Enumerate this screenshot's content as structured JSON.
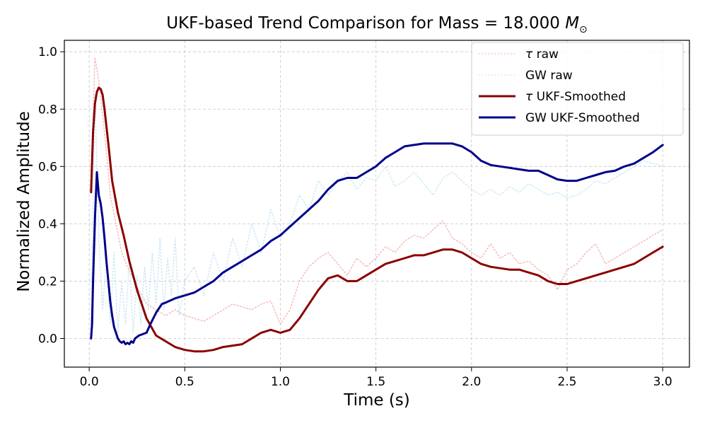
{
  "chart_data": {
    "type": "line",
    "title": "UKF-based Trend Comparison for Mass = 18.000",
    "title_symbol": "M",
    "title_subscript": "⊙",
    "xlabel": "Time (s)",
    "ylabel": "Normalized Amplitude",
    "xlim": [
      -0.13,
      3.14
    ],
    "ylim": [
      -0.1,
      1.04
    ],
    "xticks": [
      0.0,
      0.5,
      1.0,
      1.5,
      2.0,
      2.5,
      3.0
    ],
    "xtick_labels": [
      "0.0",
      "0.5",
      "1.0",
      "1.5",
      "2.0",
      "2.5",
      "3.0"
    ],
    "yticks": [
      0.0,
      0.2,
      0.4,
      0.6,
      0.8,
      1.0
    ],
    "ytick_labels": [
      "0.0",
      "0.2",
      "0.4",
      "0.6",
      "0.8",
      "1.0"
    ],
    "grid": true,
    "legend_position": "top-right",
    "series": [
      {
        "name": "τ raw",
        "label_symbol": "τ",
        "label_rest": " raw",
        "color": "#f4a6a6",
        "style": "dotted",
        "x": [
          0.01,
          0.03,
          0.05,
          0.07,
          0.09,
          0.11,
          0.14,
          0.17,
          0.2,
          0.25,
          0.3,
          0.35,
          0.4,
          0.45,
          0.5,
          0.55,
          0.6,
          0.65,
          0.7,
          0.75,
          0.8,
          0.85,
          0.9,
          0.95,
          1.0,
          1.05,
          1.1,
          1.15,
          1.2,
          1.25,
          1.3,
          1.35,
          1.4,
          1.45,
          1.5,
          1.55,
          1.6,
          1.65,
          1.7,
          1.75,
          1.8,
          1.85,
          1.9,
          1.95,
          2.0,
          2.05,
          2.1,
          2.15,
          2.2,
          2.25,
          2.3,
          2.35,
          2.4,
          2.45,
          2.5,
          2.55,
          2.6,
          2.65,
          2.7,
          2.75,
          2.8,
          2.85,
          2.9,
          2.95,
          3.0
        ],
        "values": [
          0.55,
          0.98,
          0.9,
          0.78,
          0.65,
          0.5,
          0.4,
          0.3,
          0.25,
          0.18,
          0.12,
          0.1,
          0.08,
          0.1,
          0.08,
          0.07,
          0.06,
          0.08,
          0.1,
          0.12,
          0.11,
          0.1,
          0.12,
          0.13,
          0.05,
          0.1,
          0.2,
          0.25,
          0.28,
          0.3,
          0.26,
          0.22,
          0.28,
          0.25,
          0.28,
          0.32,
          0.3,
          0.34,
          0.36,
          0.35,
          0.38,
          0.41,
          0.35,
          0.33,
          0.3,
          0.28,
          0.33,
          0.28,
          0.3,
          0.26,
          0.27,
          0.24,
          0.22,
          0.17,
          0.24,
          0.26,
          0.3,
          0.33,
          0.26,
          0.28,
          0.3,
          0.32,
          0.34,
          0.36,
          0.38
        ]
      },
      {
        "name": "GW raw",
        "label_symbol": "",
        "label_rest": "GW raw",
        "color": "#bfe3f2",
        "style": "dotted",
        "x": [
          0.01,
          0.03,
          0.05,
          0.07,
          0.09,
          0.11,
          0.13,
          0.15,
          0.17,
          0.19,
          0.21,
          0.23,
          0.25,
          0.27,
          0.29,
          0.31,
          0.33,
          0.35,
          0.37,
          0.39,
          0.41,
          0.43,
          0.45,
          0.47,
          0.5,
          0.55,
          0.6,
          0.65,
          0.7,
          0.75,
          0.8,
          0.85,
          0.9,
          0.95,
          1.0,
          1.05,
          1.1,
          1.15,
          1.2,
          1.25,
          1.3,
          1.35,
          1.4,
          1.45,
          1.5,
          1.55,
          1.6,
          1.65,
          1.7,
          1.75,
          1.8,
          1.85,
          1.9,
          1.95,
          2.0,
          2.05,
          2.1,
          2.15,
          2.2,
          2.25,
          2.3,
          2.35,
          2.4,
          2.45,
          2.5,
          2.55,
          2.6,
          2.65,
          2.7,
          2.75,
          2.8,
          2.85,
          2.9,
          2.95,
          3.0
        ],
        "values": [
          0.05,
          0.85,
          0.35,
          0.1,
          0.28,
          0.05,
          0.3,
          0.02,
          0.2,
          0.05,
          0.28,
          0.02,
          0.22,
          0.05,
          0.25,
          0.1,
          0.3,
          0.12,
          0.35,
          0.1,
          0.28,
          0.15,
          0.35,
          0.08,
          0.2,
          0.25,
          0.15,
          0.3,
          0.2,
          0.35,
          0.25,
          0.4,
          0.3,
          0.45,
          0.35,
          0.4,
          0.5,
          0.45,
          0.55,
          0.5,
          0.55,
          0.58,
          0.52,
          0.56,
          0.55,
          0.6,
          0.53,
          0.55,
          0.58,
          0.54,
          0.5,
          0.56,
          0.58,
          0.55,
          0.52,
          0.5,
          0.52,
          0.5,
          0.53,
          0.51,
          0.54,
          0.52,
          0.5,
          0.51,
          0.49,
          0.5,
          0.52,
          0.55,
          0.54,
          0.56,
          0.58,
          0.6,
          0.62,
          0.61,
          0.6
        ]
      },
      {
        "name": "τ UKF-Smoothed",
        "label_symbol": "τ",
        "label_rest": " UKF-Smoothed",
        "color": "#8b0000",
        "style": "solid",
        "x": [
          0.01,
          0.02,
          0.03,
          0.04,
          0.05,
          0.06,
          0.07,
          0.08,
          0.1,
          0.12,
          0.15,
          0.18,
          0.21,
          0.25,
          0.3,
          0.35,
          0.4,
          0.45,
          0.5,
          0.55,
          0.6,
          0.65,
          0.7,
          0.75,
          0.8,
          0.85,
          0.9,
          0.95,
          1.0,
          1.05,
          1.1,
          1.15,
          1.2,
          1.25,
          1.3,
          1.35,
          1.4,
          1.45,
          1.5,
          1.55,
          1.6,
          1.65,
          1.7,
          1.75,
          1.8,
          1.85,
          1.9,
          1.95,
          2.0,
          2.05,
          2.1,
          2.15,
          2.2,
          2.25,
          2.3,
          2.35,
          2.4,
          2.45,
          2.5,
          2.55,
          2.6,
          2.65,
          2.7,
          2.75,
          2.8,
          2.85,
          2.9,
          2.95,
          3.0
        ],
        "values": [
          0.51,
          0.72,
          0.82,
          0.86,
          0.875,
          0.87,
          0.85,
          0.8,
          0.68,
          0.55,
          0.44,
          0.36,
          0.27,
          0.17,
          0.07,
          0.01,
          -0.01,
          -0.03,
          -0.04,
          -0.045,
          -0.045,
          -0.04,
          -0.03,
          -0.025,
          -0.02,
          0.0,
          0.02,
          0.03,
          0.02,
          0.03,
          0.07,
          0.12,
          0.17,
          0.21,
          0.22,
          0.2,
          0.2,
          0.22,
          0.24,
          0.26,
          0.27,
          0.28,
          0.29,
          0.29,
          0.3,
          0.31,
          0.31,
          0.3,
          0.28,
          0.26,
          0.25,
          0.245,
          0.24,
          0.24,
          0.23,
          0.22,
          0.2,
          0.19,
          0.19,
          0.2,
          0.21,
          0.22,
          0.23,
          0.24,
          0.25,
          0.26,
          0.28,
          0.3,
          0.32
        ]
      },
      {
        "name": "GW UKF-Smoothed",
        "label_symbol": "",
        "label_rest": "GW UKF-Smoothed",
        "color": "#00008b",
        "style": "solid",
        "x": [
          0.01,
          0.015,
          0.02,
          0.03,
          0.04,
          0.05,
          0.06,
          0.07,
          0.08,
          0.09,
          0.1,
          0.11,
          0.12,
          0.13,
          0.14,
          0.15,
          0.16,
          0.17,
          0.18,
          0.19,
          0.2,
          0.21,
          0.22,
          0.23,
          0.24,
          0.26,
          0.28,
          0.3,
          0.32,
          0.35,
          0.38,
          0.4,
          0.45,
          0.5,
          0.55,
          0.6,
          0.65,
          0.7,
          0.75,
          0.8,
          0.85,
          0.9,
          0.95,
          1.0,
          1.05,
          1.1,
          1.15,
          1.2,
          1.25,
          1.3,
          1.35,
          1.4,
          1.45,
          1.5,
          1.55,
          1.6,
          1.65,
          1.7,
          1.75,
          1.8,
          1.85,
          1.9,
          1.95,
          2.0,
          2.05,
          2.1,
          2.15,
          2.2,
          2.25,
          2.3,
          2.35,
          2.4,
          2.45,
          2.5,
          2.55,
          2.6,
          2.65,
          2.7,
          2.75,
          2.8,
          2.85,
          2.9,
          2.95,
          3.0
        ],
        "values": [
          0.0,
          0.05,
          0.2,
          0.42,
          0.58,
          0.5,
          0.47,
          0.42,
          0.35,
          0.27,
          0.2,
          0.13,
          0.08,
          0.04,
          0.02,
          0.0,
          -0.01,
          -0.015,
          -0.01,
          -0.02,
          -0.015,
          -0.02,
          -0.01,
          -0.015,
          0.0,
          0.01,
          0.015,
          0.02,
          0.05,
          0.09,
          0.12,
          0.125,
          0.14,
          0.15,
          0.16,
          0.18,
          0.2,
          0.23,
          0.25,
          0.27,
          0.29,
          0.31,
          0.34,
          0.36,
          0.39,
          0.42,
          0.45,
          0.48,
          0.52,
          0.55,
          0.56,
          0.56,
          0.58,
          0.6,
          0.63,
          0.65,
          0.67,
          0.675,
          0.68,
          0.68,
          0.68,
          0.68,
          0.67,
          0.65,
          0.62,
          0.605,
          0.6,
          0.595,
          0.59,
          0.585,
          0.585,
          0.57,
          0.555,
          0.55,
          0.55,
          0.56,
          0.57,
          0.58,
          0.585,
          0.6,
          0.61,
          0.63,
          0.65,
          0.675
        ]
      }
    ]
  }
}
